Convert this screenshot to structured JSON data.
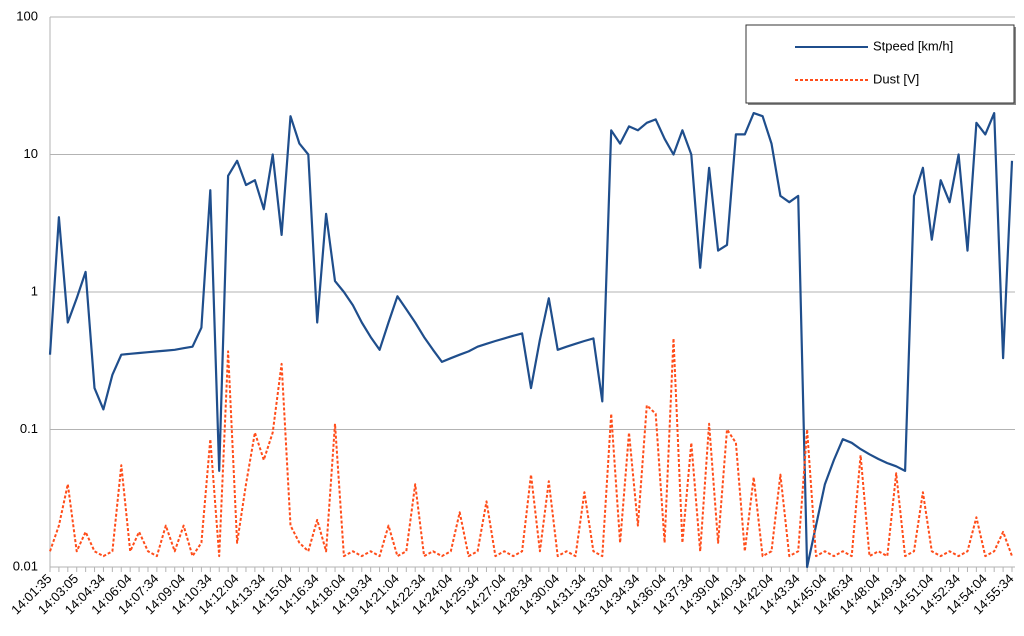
{
  "chart_data": {
    "type": "line",
    "categories": [
      "14:01:35",
      null,
      null,
      "14:03:05",
      null,
      null,
      "14:04:34",
      null,
      null,
      "14:06:04",
      null,
      null,
      "14:07:34",
      null,
      null,
      "14:09:04",
      null,
      null,
      "14:10:34",
      null,
      null,
      "14:12:04",
      null,
      null,
      "14:13:34",
      null,
      null,
      "14:15:04",
      null,
      null,
      "14:16:34",
      null,
      null,
      "14:18:04",
      null,
      null,
      "14:19:34",
      null,
      null,
      "14:21:04",
      null,
      null,
      "14:22:34",
      null,
      null,
      "14:24:04",
      null,
      null,
      "14:25:34",
      null,
      null,
      "14:27:04",
      null,
      null,
      "14:28:34",
      null,
      null,
      "14:30:04",
      null,
      null,
      "14:31:34",
      null,
      null,
      "14:33:04",
      null,
      null,
      "14:34:34",
      null,
      null,
      "14:36:04",
      null,
      null,
      "14:37:34",
      null,
      null,
      "14:39:04",
      null,
      null,
      "14:40:34",
      null,
      null,
      "14:42:04",
      null,
      null,
      "14:43:34",
      null,
      null,
      "14:45:04",
      null,
      null,
      "14:46:34",
      null,
      null,
      "14:48:04",
      null,
      null,
      "14:49:34",
      null,
      null,
      "14:51:04",
      null,
      null,
      "14:52:34",
      null,
      null,
      "14:54:04",
      null,
      null,
      "14:55:34"
    ],
    "series": [
      {
        "name": "Stpeed [km/h]",
        "color": "#1f4e8c",
        "style": "solid",
        "values": [
          0.35,
          3.5,
          0.6,
          0.9,
          1.4,
          0.2,
          0.14,
          0.25,
          0.35,
          0.355,
          0.36,
          0.365,
          0.37,
          0.375,
          0.38,
          0.39,
          0.4,
          0.55,
          5.5,
          0.05,
          7,
          9,
          6,
          6.5,
          4,
          10,
          2.6,
          19,
          12,
          10,
          0.6,
          3.7,
          1.2,
          1.0,
          0.8,
          0.6,
          0.47,
          0.38,
          0.6,
          0.93,
          0.75,
          0.6,
          0.47,
          0.38,
          0.31,
          0.33,
          0.35,
          0.37,
          0.4,
          0.42,
          0.44,
          0.46,
          0.48,
          0.5,
          0.2,
          0.45,
          0.9,
          0.38,
          0.4,
          0.42,
          0.44,
          0.46,
          0.16,
          15,
          12,
          16,
          15,
          17,
          18,
          13,
          10,
          15,
          10,
          1.5,
          8,
          2,
          2.2,
          14,
          14,
          20,
          19,
          12,
          5,
          4.5,
          5,
          0.01,
          0.02,
          0.04,
          0.06,
          0.085,
          0.08,
          0.072,
          0.066,
          0.061,
          0.057,
          0.054,
          0.05,
          5,
          8,
          2.4,
          6.5,
          4.5,
          10,
          2,
          17,
          14,
          20,
          0.33,
          9
        ]
      },
      {
        "name": "Dust [V]",
        "color": "#ff4d1a",
        "style": "dashed",
        "values": [
          0.013,
          0.02,
          0.04,
          0.013,
          0.018,
          0.013,
          0.012,
          0.013,
          0.055,
          0.013,
          0.018,
          0.013,
          0.012,
          0.02,
          0.013,
          0.02,
          0.012,
          0.015,
          0.085,
          0.012,
          0.37,
          0.015,
          0.04,
          0.095,
          0.06,
          0.095,
          0.3,
          0.02,
          0.015,
          0.013,
          0.022,
          0.013,
          0.11,
          0.012,
          0.013,
          0.012,
          0.013,
          0.012,
          0.02,
          0.012,
          0.013,
          0.04,
          0.012,
          0.013,
          0.012,
          0.013,
          0.025,
          0.012,
          0.013,
          0.03,
          0.012,
          0.013,
          0.012,
          0.013,
          0.047,
          0.013,
          0.042,
          0.012,
          0.013,
          0.012,
          0.035,
          0.013,
          0.012,
          0.13,
          0.015,
          0.095,
          0.02,
          0.15,
          0.13,
          0.015,
          0.46,
          0.015,
          0.08,
          0.013,
          0.11,
          0.015,
          0.1,
          0.08,
          0.013,
          0.045,
          0.012,
          0.013,
          0.047,
          0.012,
          0.013,
          0.1,
          0.012,
          0.013,
          0.012,
          0.013,
          0.012,
          0.065,
          0.012,
          0.013,
          0.012,
          0.048,
          0.012,
          0.013,
          0.035,
          0.013,
          0.012,
          0.013,
          0.012,
          0.013,
          0.023,
          0.012,
          0.013,
          0.018,
          0.012
        ]
      }
    ],
    "ylim": [
      0.01,
      100
    ],
    "yticks": [
      0.01,
      0.1,
      1,
      10,
      100
    ],
    "log_y": true,
    "grid": true,
    "legend": "top-right"
  }
}
